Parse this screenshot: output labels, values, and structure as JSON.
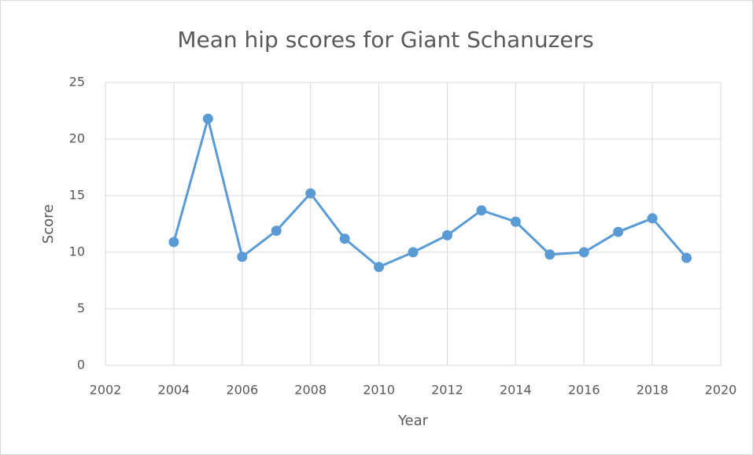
{
  "chart_data": {
    "type": "line",
    "title": "Mean hip scores for Giant Schanuzers",
    "xlabel": "Year",
    "ylabel": "Score",
    "x": [
      2004,
      2005,
      2006,
      2007,
      2008,
      2009,
      2010,
      2011,
      2012,
      2013,
      2014,
      2015,
      2016,
      2017,
      2018,
      2019
    ],
    "values": [
      10.9,
      21.8,
      9.6,
      11.9,
      15.2,
      11.2,
      8.7,
      10.0,
      11.5,
      13.7,
      12.7,
      9.8,
      10.0,
      11.8,
      13.0,
      9.5
    ],
    "color": "#5b9bd5",
    "xlim": [
      2002,
      2020
    ],
    "xticks": [
      2002,
      2004,
      2006,
      2008,
      2010,
      2012,
      2014,
      2016,
      2018,
      2020
    ],
    "ylim": [
      0,
      25
    ],
    "yticks": [
      0,
      5,
      10,
      15,
      20,
      25
    ],
    "grid": true
  }
}
